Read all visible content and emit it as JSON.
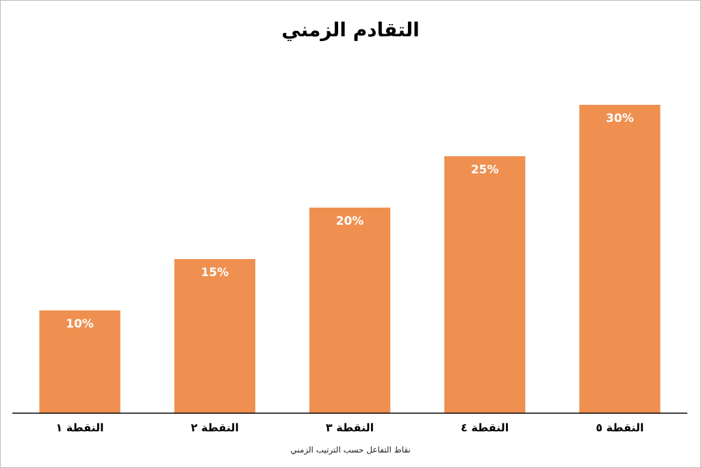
{
  "chart_data": {
    "type": "bar",
    "title": "التقادم الزمني",
    "x_label": "نقاط التفاعل حسب الترتيب الزمني",
    "categories": [
      "النقطة ١",
      "النقطة ٢",
      "النقطة ٣",
      "النقطة ٤",
      "النقطة ٥"
    ],
    "values": [
      10,
      15,
      20,
      25,
      30
    ],
    "value_labels": [
      "10%",
      "15%",
      "20%",
      "25%",
      "30%"
    ],
    "color": "#ef9051",
    "ylim": [
      0,
      35
    ]
  }
}
